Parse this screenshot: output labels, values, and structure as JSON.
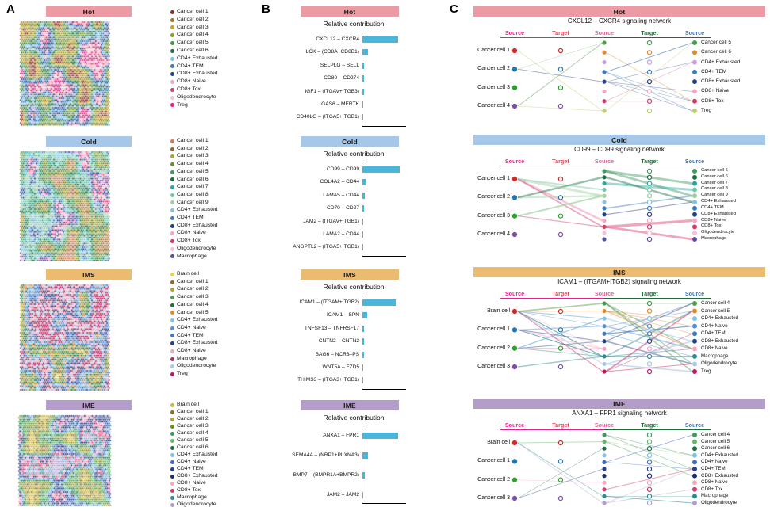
{
  "figure": {
    "panel_a_label": "A",
    "panel_b_label": "B",
    "panel_c_label": "C"
  },
  "groups": [
    {
      "id": "hot",
      "name": "Hot",
      "band_color": "#ec9aa4"
    },
    {
      "id": "cold",
      "name": "Cold",
      "band_color": "#a6c7e7"
    },
    {
      "id": "ims",
      "name": "IMS",
      "band_color": "#ecbb72"
    },
    {
      "id": "ime",
      "name": "IME",
      "band_color": "#b59dca"
    }
  ],
  "panel_a": {
    "sections": [
      {
        "group": "Hot",
        "legend": [
          {
            "label": "Cancer cell 1",
            "color": "#8b2a2a"
          },
          {
            "label": "Cancer cell 2",
            "color": "#a07d28"
          },
          {
            "label": "Cancer cell 3",
            "color": "#c9a227"
          },
          {
            "label": "Cancer cell 4",
            "color": "#8a9a2b"
          },
          {
            "label": "Cancer cell 5",
            "color": "#4c9a4c"
          },
          {
            "label": "Cancer cell 6",
            "color": "#1f6e46"
          },
          {
            "label": "CD4+ Exhausted",
            "color": "#85c1e0"
          },
          {
            "label": "CD4+ TEM",
            "color": "#3d7bbf"
          },
          {
            "label": "CD8+ Exhausted",
            "color": "#27408b"
          },
          {
            "label": "CD8+ Naive",
            "color": "#f2a7c3"
          },
          {
            "label": "CD8+ Tox",
            "color": "#d63a6a"
          },
          {
            "label": "Oligodendrocyte",
            "color": "#f0c4d6"
          },
          {
            "label": "Treg",
            "color": "#e0218a"
          }
        ]
      },
      {
        "group": "Cold",
        "legend": [
          {
            "label": "Cancer cell 1",
            "color": "#c77f5e"
          },
          {
            "label": "Cancer cell 2",
            "color": "#8a6d2f"
          },
          {
            "label": "Cancer cell 3",
            "color": "#b0a32e"
          },
          {
            "label": "Cancer cell 4",
            "color": "#6b8e23"
          },
          {
            "label": "Cancer cell 5",
            "color": "#3f9a5f"
          },
          {
            "label": "Cancer cell 6",
            "color": "#1f6e46"
          },
          {
            "label": "Cancer cell 7",
            "color": "#2aa8a0"
          },
          {
            "label": "Cancer cell 8",
            "color": "#74c6a8"
          },
          {
            "label": "Cancer cell 9",
            "color": "#9fcf9f"
          },
          {
            "label": "CD4+ Exhausted",
            "color": "#85c1e0"
          },
          {
            "label": "CD4+ TEM",
            "color": "#3d7bbf"
          },
          {
            "label": "CD8+ Exhausted",
            "color": "#27408b"
          },
          {
            "label": "CD8+ Naive",
            "color": "#f2a7c3"
          },
          {
            "label": "CD8+ Tox",
            "color": "#d63a6a"
          },
          {
            "label": "Oligodendrocyte",
            "color": "#f0c4d6"
          },
          {
            "label": "Macrophage",
            "color": "#5b4ea0"
          }
        ]
      },
      {
        "group": "IMS",
        "legend": [
          {
            "label": "Brain cell",
            "color": "#e6d44a"
          },
          {
            "label": "Cancer cell 1",
            "color": "#8a6d2f"
          },
          {
            "label": "Cancer cell 2",
            "color": "#b0a32e"
          },
          {
            "label": "Cancer cell 3",
            "color": "#4c9a4c"
          },
          {
            "label": "Cancer cell 4",
            "color": "#1f6e46"
          },
          {
            "label": "Cancer cell 5",
            "color": "#e08a2e"
          },
          {
            "label": "CD4+ Exhausted",
            "color": "#85c1e0"
          },
          {
            "label": "CD4+ Naive",
            "color": "#5b8fd4"
          },
          {
            "label": "CD4+ TEM",
            "color": "#3d7bbf"
          },
          {
            "label": "CD8+ Exhausted",
            "color": "#27408b"
          },
          {
            "label": "CD8+ Naive",
            "color": "#f2a7c3"
          },
          {
            "label": "Macrophage",
            "color": "#a83258"
          },
          {
            "label": "Oligodendrocyte",
            "color": "#aec6e8"
          },
          {
            "label": "Treg",
            "color": "#c2185b"
          }
        ]
      },
      {
        "group": "IME",
        "legend": [
          {
            "label": "Brain cell",
            "color": "#cdbb3a"
          },
          {
            "label": "Cancer cell 1",
            "color": "#8a6d2f"
          },
          {
            "label": "Cancer cell 2",
            "color": "#b0a32e"
          },
          {
            "label": "Cancer cell 3",
            "color": "#6b8e23"
          },
          {
            "label": "Cancer cell 4",
            "color": "#3f9a5f"
          },
          {
            "label": "Cancer cell 5",
            "color": "#66b76b"
          },
          {
            "label": "Cancer cell 6",
            "color": "#1f6e46"
          },
          {
            "label": "CD4+ Exhausted",
            "color": "#85c1e0"
          },
          {
            "label": "CD4+ Naive",
            "color": "#4169c8"
          },
          {
            "label": "CD4+ TEM",
            "color": "#27408b"
          },
          {
            "label": "CD8+ Exhausted",
            "color": "#1f2f6e"
          },
          {
            "label": "CD8+ Naive",
            "color": "#f2a7c3"
          },
          {
            "label": "CD8+ Tox",
            "color": "#d63a6a"
          },
          {
            "label": "Macrophage",
            "color": "#2e8b8b"
          },
          {
            "label": "Oligodendrocyte",
            "color": "#b0a0d0"
          }
        ]
      }
    ]
  },
  "chart_data": [
    {
      "type": "bar",
      "group": "Hot",
      "title": "Relative contribution",
      "orientation": "horizontal",
      "xlim": [
        0,
        1
      ],
      "bar_color": "#4ab6d9",
      "categories": [
        "CXCL12 – CXCR4",
        "LCK – (CD8A+CD8B1)",
        "SELPLG – SELL",
        "CD80 – CD274",
        "IGF1 – (ITGAV+ITGB3)",
        "GAS6 – MERTK",
        "CD40LG – (ITGA5+ITGB1)"
      ],
      "values": [
        0.86,
        0.13,
        0.04,
        0.03,
        0.028,
        0.025,
        0.02
      ]
    },
    {
      "type": "bar",
      "group": "Cold",
      "title": "Relative contribution",
      "orientation": "horizontal",
      "xlim": [
        0,
        1
      ],
      "bar_color": "#4ab6d9",
      "categories": [
        "CD99 – CD99",
        "COL4A2 – CD44",
        "LAMA5 – CD44",
        "CD70 – CD27",
        "JAM2 – (ITGAV+ITGB1)",
        "LAMA2 – CD44",
        "ANGPTL2 – (ITGA5+ITGB1)"
      ],
      "values": [
        0.9,
        0.08,
        0.055,
        0.03,
        0.026,
        0.022,
        0.018
      ]
    },
    {
      "type": "bar",
      "group": "IMS",
      "title": "Relative contribution",
      "orientation": "horizontal",
      "xlim": [
        0,
        1
      ],
      "bar_color": "#4ab6d9",
      "categories": [
        "ICAM1 – (ITGAM+ITGB2)",
        "ICAM1 – SPN",
        "TNFSF13 – TNFRSF17",
        "CNTN2 – CNTN2",
        "BAG6 – NCR3–PS",
        "WNT5A – FZD5",
        "THIMS3 – (ITGA3+ITGB1)"
      ],
      "values": [
        0.82,
        0.11,
        0.042,
        0.036,
        0.03,
        0.026,
        0.02
      ]
    },
    {
      "type": "bar",
      "group": "IME",
      "title": "Relative contribution",
      "orientation": "horizontal",
      "xlim": [
        0,
        1
      ],
      "bar_color": "#4ab6d9",
      "categories": [
        "ANXA1 – FPR1",
        "SEMA4A – (NRP1+PLXNA3)",
        "BMP7 – (BMPR1A+BMPR2)",
        "JAM2 – JAM2"
      ],
      "values": [
        0.86,
        0.13,
        0.05,
        0.025
      ]
    }
  ],
  "panel_c": {
    "column_headers": [
      {
        "label": "Source",
        "color": "#e0218a"
      },
      {
        "label": "Target",
        "color": "#d44a5e"
      },
      {
        "label": "Source",
        "color": "#e0639f"
      },
      {
        "label": "Target",
        "color": "#1f6b3a"
      },
      {
        "label": "Source",
        "color": "#3e6fa8"
      }
    ],
    "networks": [
      {
        "group": "Hot",
        "title": "CXCL12 – CXCR4 signaling network",
        "left": [
          {
            "label": "Cancer cell 1",
            "color": "#d62728"
          },
          {
            "label": "Cancer cell 2",
            "color": "#1f77b4"
          },
          {
            "label": "Cancer cell 3",
            "color": "#2ca02c"
          },
          {
            "label": "Cancer cell 4",
            "color": "#7b4fa6"
          }
        ],
        "right": [
          {
            "label": "Cancer cell 5",
            "color": "#4c9a4c"
          },
          {
            "label": "Cancer cell 6",
            "color": "#e08a2e"
          },
          {
            "label": "CD4+ Exhausted",
            "color": "#c9a0dc"
          },
          {
            "label": "CD4+ TEM",
            "color": "#3d7bbf"
          },
          {
            "label": "CD8+ Exhausted",
            "color": "#27408b"
          },
          {
            "label": "CD8+ Naive",
            "color": "#f2a7c3"
          },
          {
            "label": "CD8+ Tox",
            "color": "#d63a6a"
          },
          {
            "label": "Treg",
            "color": "#b5cf6b"
          }
        ]
      },
      {
        "group": "Cold",
        "title": "CD99 – CD99 signaling network",
        "left": [
          {
            "label": "Cancer cell 1",
            "color": "#d62728"
          },
          {
            "label": "Cancer cell 2",
            "color": "#1f77b4"
          },
          {
            "label": "Cancer cell 3",
            "color": "#2ca02c"
          },
          {
            "label": "Cancer cell 4",
            "color": "#7b4fa6"
          }
        ],
        "right": [
          {
            "label": "Cancer cell 5",
            "color": "#3f9a5f"
          },
          {
            "label": "Cancer cell 6",
            "color": "#1f6e46"
          },
          {
            "label": "Cancer cell 7",
            "color": "#2aa8a0"
          },
          {
            "label": "Cancer cell 8",
            "color": "#74c6a8"
          },
          {
            "label": "Cancer cell 9",
            "color": "#9fcf9f"
          },
          {
            "label": "CD4+ Exhausted",
            "color": "#85c1e0"
          },
          {
            "label": "CD4+ TEM",
            "color": "#3d7bbf"
          },
          {
            "label": "CD8+ Exhausted",
            "color": "#27408b"
          },
          {
            "label": "CD8+ Naive",
            "color": "#f2a7c3"
          },
          {
            "label": "CD8+ Tox",
            "color": "#d63a6a"
          },
          {
            "label": "Oligodendrocyte",
            "color": "#f0c4d6"
          },
          {
            "label": "Macrophage",
            "color": "#5b4ea0"
          }
        ]
      },
      {
        "group": "IMS",
        "title": "ICAM1 – (ITGAM+ITGB2) signaling network",
        "left": [
          {
            "label": "Brain cell",
            "color": "#d62728"
          },
          {
            "label": "Cancer cell 1",
            "color": "#1f77b4"
          },
          {
            "label": "Cancer cell 2",
            "color": "#2ca02c"
          },
          {
            "label": "Cancer cell 3",
            "color": "#7b4fa6"
          }
        ],
        "right": [
          {
            "label": "Cancer cell 4",
            "color": "#4c9a4c"
          },
          {
            "label": "Cancer cell 5",
            "color": "#e08a2e"
          },
          {
            "label": "CD4+ Exhausted",
            "color": "#85c1e0"
          },
          {
            "label": "CD4+ Naive",
            "color": "#5b8fd4"
          },
          {
            "label": "CD4+ TEM",
            "color": "#3d7bbf"
          },
          {
            "label": "CD8+ Exhausted",
            "color": "#27408b"
          },
          {
            "label": "CD8+ Naive",
            "color": "#f2a7c3"
          },
          {
            "label": "Macrophage",
            "color": "#2e8b8b"
          },
          {
            "label": "Oligodendrocyte",
            "color": "#aec6e8"
          },
          {
            "label": "Treg",
            "color": "#c2185b"
          }
        ]
      },
      {
        "group": "IME",
        "title": "ANXA1 – FPR1 signaling network",
        "left": [
          {
            "label": "Brain cell",
            "color": "#d62728"
          },
          {
            "label": "Cancer cell 1",
            "color": "#1f77b4"
          },
          {
            "label": "Cancer cell 2",
            "color": "#2ca02c"
          },
          {
            "label": "Cancer cell 3",
            "color": "#7b4fa6"
          }
        ],
        "right": [
          {
            "label": "Cancer cell 4",
            "color": "#3f9a5f"
          },
          {
            "label": "Cancer cell 5",
            "color": "#66b76b"
          },
          {
            "label": "Cancer cell 6",
            "color": "#1f6e46"
          },
          {
            "label": "CD4+ Exhausted",
            "color": "#85c1e0"
          },
          {
            "label": "CD4+ Naive",
            "color": "#4169c8"
          },
          {
            "label": "CD4+ TEM",
            "color": "#27408b"
          },
          {
            "label": "CD8+ Exhausted",
            "color": "#1f2f6e"
          },
          {
            "label": "CD8+ Naive",
            "color": "#f2a7c3"
          },
          {
            "label": "CD8+ Tox",
            "color": "#d63a6a"
          },
          {
            "label": "Macrophage",
            "color": "#2e8b8b"
          },
          {
            "label": "Oligodendrocyte",
            "color": "#b0a0d0"
          }
        ]
      }
    ]
  }
}
